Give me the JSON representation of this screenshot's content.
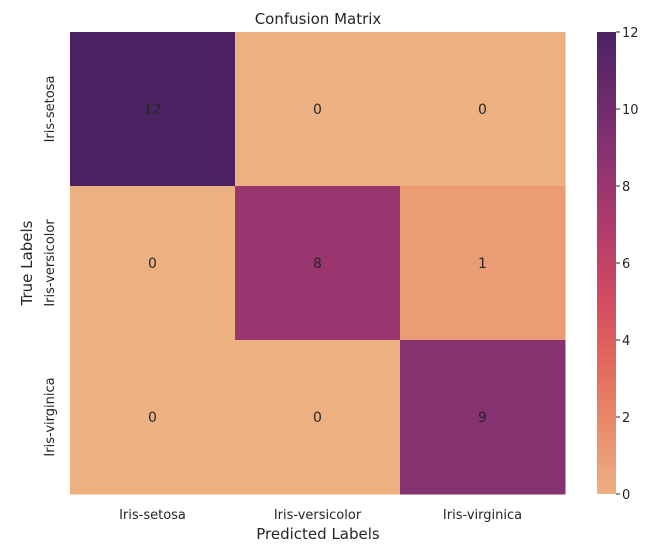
{
  "chart_data": {
    "type": "heatmap",
    "title": "Confusion Matrix",
    "xlabel": "Predicted Labels",
    "ylabel": "True Labels",
    "x_categories": [
      "Iris-setosa",
      "Iris-versicolor",
      "Iris-virginica"
    ],
    "y_categories": [
      "Iris-setosa",
      "Iris-versicolor",
      "Iris-virginica"
    ],
    "values": [
      [
        12,
        0,
        0
      ],
      [
        0,
        8,
        1
      ],
      [
        0,
        0,
        9
      ]
    ],
    "colorbar": {
      "min": 0,
      "max": 12,
      "ticks": [
        0,
        2,
        4,
        6,
        8,
        10,
        12
      ]
    },
    "colormap": [
      "#edb081",
      "#e98d6b",
      "#e3685c",
      "#d14a61",
      "#b13c6c",
      "#8f3371",
      "#6c2b6d",
      "#4b2362"
    ],
    "annotation_colors": {
      "light": "#ffffff",
      "dark": "#262626"
    }
  }
}
